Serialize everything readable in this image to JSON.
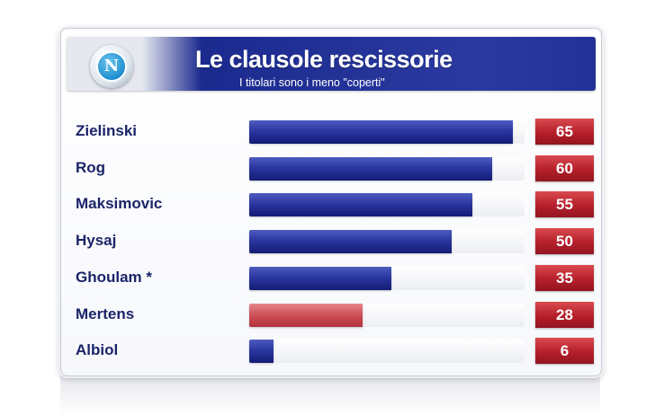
{
  "header": {
    "logo_letter": "N",
    "title": "Le clausole rescissorie",
    "subtitle": "I titolari sono i meno \"coperti\""
  },
  "colors": {
    "primary_bar": "#2a379f",
    "highlight_bar": "#cc4a52",
    "value_badge": "#b51f2a"
  },
  "chart_data": {
    "type": "bar",
    "orientation": "horizontal",
    "title": "Le clausole rescissorie",
    "subtitle": "I titolari sono i meno \"coperti\"",
    "categories": [
      "Zielinski",
      "Rog",
      "Maksimovic",
      "Hysaj",
      "Ghoulam *",
      "Mertens",
      "Albiol"
    ],
    "values": [
      65,
      60,
      55,
      50,
      35,
      28,
      6
    ],
    "value_labels": [
      "65",
      "60",
      "55",
      "50",
      "35",
      "28",
      "6"
    ],
    "highlighted": [
      "Mertens"
    ],
    "xlim": [
      0,
      68
    ]
  }
}
